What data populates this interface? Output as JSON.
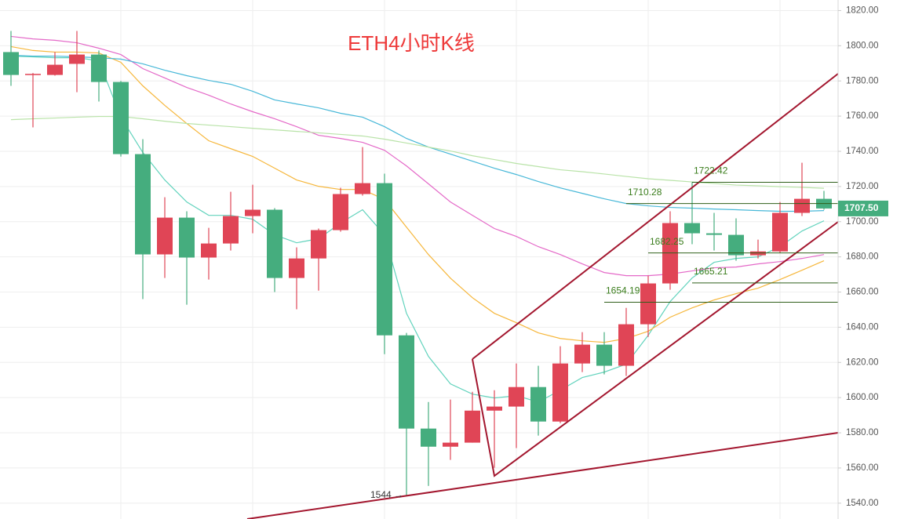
{
  "chart_data": {
    "type": "candlestick",
    "title": "ETH4小时K线",
    "up_color": "#e04556",
    "down_color": "#45ad7e",
    "open": [
      1796.4,
      1784.0,
      1783.4,
      1789.7,
      1795.0,
      1779.4,
      1738.4,
      1681.4,
      1702.3,
      1679.6,
      1687.6,
      1703.2,
      1706.8,
      1668.0,
      1679.1,
      1695.2,
      1715.7,
      1721.9,
      1635.4,
      1582.4,
      1572.1,
      1574.4,
      1592.6,
      1594.9,
      1606.0,
      1586.4,
      1619.4,
      1630.1,
      1618.1,
      1641.7,
      1664.9,
      1699.2,
      1693.4,
      1692.5,
      1680.9,
      1683.1,
      1705.0,
      1713.0
    ],
    "high": [
      1808.4,
      1784.5,
      1796.4,
      1808.4,
      1797.3,
      1780.0,
      1746.9,
      1713.9,
      1705.9,
      1696.5,
      1717.0,
      1721.0,
      1707.7,
      1685.4,
      1696.1,
      1719.3,
      1742.4,
      1727.3,
      1636.8,
      1597.5,
      1598.9,
      1603.3,
      1604.2,
      1619.4,
      1618.1,
      1629.2,
      1637.2,
      1637.2,
      1651.0,
      1669.3,
      1705.9,
      1722.4,
      1705.0,
      1701.9,
      1689.8,
      1711.2,
      1733.5,
      1717.5
    ],
    "low": [
      1777.2,
      1753.6,
      1783.0,
      1773.6,
      1768.3,
      1737.0,
      1656.0,
      1668.0,
      1652.8,
      1667.1,
      1683.6,
      1693.4,
      1660.0,
      1650.2,
      1660.8,
      1694.3,
      1714.8,
      1624.7,
      1544.5,
      1549.8,
      1564.6,
      1574.4,
      1560.1,
      1571.3,
      1578.4,
      1585.5,
      1614.5,
      1613.2,
      1612.3,
      1634.5,
      1661.3,
      1687.2,
      1683.6,
      1677.8,
      1679.1,
      1682.2,
      1703.2,
      1706.8
    ],
    "close": [
      1783.4,
      1784.0,
      1789.2,
      1795.0,
      1779.4,
      1738.4,
      1681.4,
      1702.3,
      1679.6,
      1687.6,
      1703.2,
      1706.8,
      1668.0,
      1679.1,
      1695.2,
      1715.7,
      1721.9,
      1635.4,
      1582.4,
      1572.1,
      1574.4,
      1592.6,
      1594.9,
      1606.0,
      1586.4,
      1619.4,
      1630.1,
      1618.1,
      1641.7,
      1664.9,
      1699.2,
      1693.4,
      1692.5,
      1680.9,
      1683.1,
      1705.0,
      1713.0,
      1707.5
    ],
    "lines": [
      {
        "color": "#62d3bd",
        "values": [
          1794.1,
          1793.7,
          1793.2,
          1793.2,
          1791.5,
          1759.4,
          1739.3,
          1723.7,
          1711.2,
          1703.6,
          1703.6,
          1701.4,
          1692.5,
          1688.0,
          1690.3,
          1699.2,
          1706.8,
          1692.5,
          1647.9,
          1623.4,
          1607.8,
          1602.0,
          1599.8,
          1601.1,
          1597.5,
          1604.2,
          1611.4,
          1614.5,
          1619.0,
          1635.4,
          1654.6,
          1668.0,
          1676.9,
          1679.1,
          1680.0,
          1685.8,
          1694.7,
          1700.5
        ]
      },
      {
        "color": "#f6b73c",
        "values": [
          1799.5,
          1797.3,
          1796.4,
          1796.4,
          1795.9,
          1790.6,
          1777.2,
          1766.1,
          1755.8,
          1746.0,
          1741.5,
          1737.1,
          1730.4,
          1723.7,
          1720.1,
          1718.3,
          1718.3,
          1712.6,
          1696.9,
          1681.3,
          1667.9,
          1656.8,
          1647.9,
          1642.6,
          1636.8,
          1633.6,
          1632.3,
          1631.4,
          1633.6,
          1637.7,
          1645.7,
          1651.0,
          1655.5,
          1659.1,
          1662.2,
          1667.1,
          1672.4,
          1677.8
        ]
      },
      {
        "color": "#e469c8",
        "values": [
          1805.3,
          1803.9,
          1803.1,
          1801.7,
          1798.6,
          1795.0,
          1787.0,
          1781.7,
          1776.3,
          1771.9,
          1766.9,
          1762.5,
          1758.5,
          1754.0,
          1749.1,
          1747.3,
          1745.1,
          1740.6,
          1731.7,
          1721.5,
          1711.2,
          1703.6,
          1696.1,
          1691.6,
          1685.8,
          1681.3,
          1676.0,
          1671.1,
          1669.3,
          1669.3,
          1670.2,
          1672.0,
          1673.8,
          1674.2,
          1676.0,
          1677.3,
          1679.1,
          1681.3
        ]
      },
      {
        "color": "#48b8d8",
        "values": [
          1794.6,
          1794.1,
          1794.1,
          1793.7,
          1793.2,
          1792.4,
          1789.7,
          1786.1,
          1783.0,
          1780.3,
          1778.1,
          1774.1,
          1769.2,
          1766.9,
          1764.7,
          1761.6,
          1759.4,
          1754.0,
          1747.3,
          1742.4,
          1738.4,
          1734.4,
          1730.4,
          1726.8,
          1722.8,
          1719.2,
          1716.1,
          1713.0,
          1710.3,
          1709.0,
          1708.1,
          1707.7,
          1707.2,
          1706.8,
          1706.3,
          1705.9,
          1705.9,
          1706.3
        ]
      },
      {
        "color": "#b9e3a8",
        "values": [
          1758.0,
          1758.5,
          1758.9,
          1759.4,
          1759.8,
          1759.8,
          1758.5,
          1757.1,
          1755.8,
          1754.9,
          1754.0,
          1753.1,
          1752.2,
          1751.3,
          1750.5,
          1749.6,
          1748.7,
          1746.9,
          1744.7,
          1742.4,
          1740.2,
          1737.5,
          1735.3,
          1733.1,
          1731.3,
          1729.5,
          1728.4,
          1727.1,
          1725.7,
          1724.4,
          1723.5,
          1722.6,
          1721.7,
          1720.8,
          1720.4,
          1719.9,
          1719.5,
          1719.0
        ]
      }
    ],
    "levels": [
      1722.42,
      1710.28,
      1682.25,
      1665.21,
      1654.19
    ],
    "level_color": "#3a7d1c",
    "low_marker": {
      "value": 1544,
      "label": "1544 →"
    },
    "last_price": {
      "value": 1707.5,
      "label": "1707.50"
    },
    "ylim": [
      1531,
      1826
    ],
    "yticks": [
      {
        "value": 1540,
        "label": "1540.00"
      },
      {
        "value": 1560,
        "label": "1560.00"
      },
      {
        "value": 1580,
        "label": "1580.00"
      },
      {
        "value": 1600,
        "label": "1600.00"
      },
      {
        "value": 1620,
        "label": "1620.00"
      },
      {
        "value": 1640,
        "label": "1640.00"
      },
      {
        "value": 1660,
        "label": "1660.00"
      },
      {
        "value": 1680,
        "label": "1680.00"
      },
      {
        "value": 1700,
        "label": "1700.00"
      },
      {
        "value": 1720,
        "label": "1720.00"
      },
      {
        "value": 1740,
        "label": "1740.00"
      },
      {
        "value": 1760,
        "label": "1760.00"
      },
      {
        "value": 1780,
        "label": "1780.00"
      },
      {
        "value": 1800,
        "label": "1800.00"
      },
      {
        "value": 1820,
        "label": "1820.00"
      }
    ],
    "grid": true
  }
}
